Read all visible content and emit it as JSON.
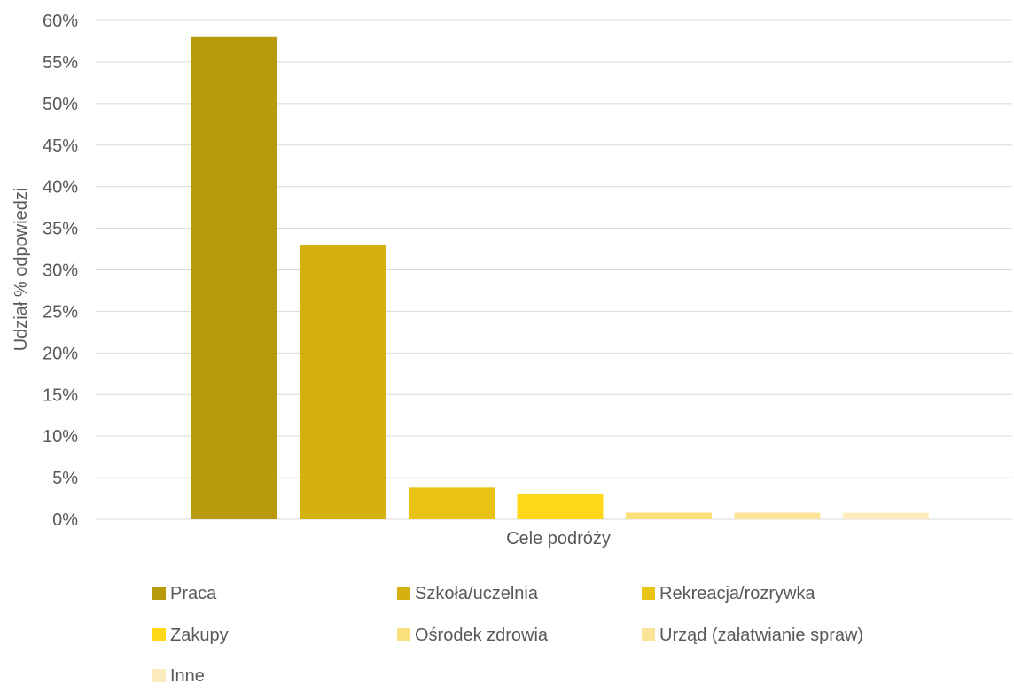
{
  "chart_data": {
    "type": "bar",
    "xlabel": "Cele podróży",
    "ylabel": "Udział % odpowiedzi",
    "ylim": [
      0,
      60
    ],
    "y_tick_step": 5,
    "y_tick_suffix": "%",
    "grid": true,
    "legend_position": "bottom",
    "series": [
      {
        "name": "Praca",
        "value": 58,
        "color": "#B89A0C"
      },
      {
        "name": "Szkoła/uczelnia",
        "value": 33,
        "color": "#D4B10F"
      },
      {
        "name": "Rekreacja/rozrywka",
        "value": 3.8,
        "color": "#EAC414"
      },
      {
        "name": "Zakupy",
        "value": 3.1,
        "color": "#FFD817"
      },
      {
        "name": "Ośrodek zdrowia",
        "value": 0.8,
        "color": "#FBDF7A"
      },
      {
        "name": "Urząd (załatwianie spraw)",
        "value": 0.8,
        "color": "#FBE49A"
      },
      {
        "name": "Inne",
        "value": 0.8,
        "color": "#FCEBBC"
      }
    ]
  }
}
